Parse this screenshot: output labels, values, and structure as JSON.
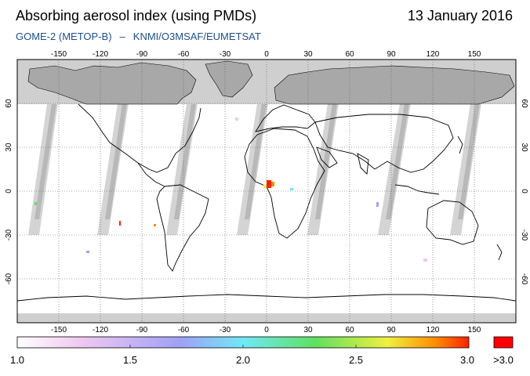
{
  "header": {
    "title": "Absorbing aerosol index (using PMDs)",
    "date": "13 January 2016",
    "subtitle_instrument": "GOME-2 (METOP-B)",
    "subtitle_separator": "–",
    "subtitle_source": "KNMI/O3MSAF/EUMETSAT"
  },
  "map": {
    "projection": "equirectangular",
    "lon_range": [
      -180,
      180
    ],
    "lat_range": [
      -90,
      90
    ],
    "lon_ticks": [
      "-150",
      "-120",
      "-90",
      "-60",
      "-30",
      "0",
      "30",
      "60",
      "90",
      "120",
      "150"
    ],
    "lat_ticks": [
      "60",
      "30",
      "0",
      "-30",
      "-60"
    ],
    "colors": {
      "polar_night": "#cfcfcf",
      "no_data_swath": "#d4d4d4",
      "dense_swath_gap": "#a8a8a8",
      "background": "#ffffff",
      "land_outline": "#000000",
      "grid": "#555555"
    }
  },
  "colorbar": {
    "labels": [
      "1.0",
      "1.5",
      "2.0",
      "2.5",
      "3.0",
      ">3.0"
    ],
    "range": [
      1.0,
      3.0
    ],
    "overflow_color": "#ff0000",
    "gradient_colors": [
      "#ffffff",
      "#f0c8f0",
      "#a0a0f8",
      "#70e8f8",
      "#60e060",
      "#f0f040",
      "#ff8800",
      "#ff2000"
    ]
  }
}
